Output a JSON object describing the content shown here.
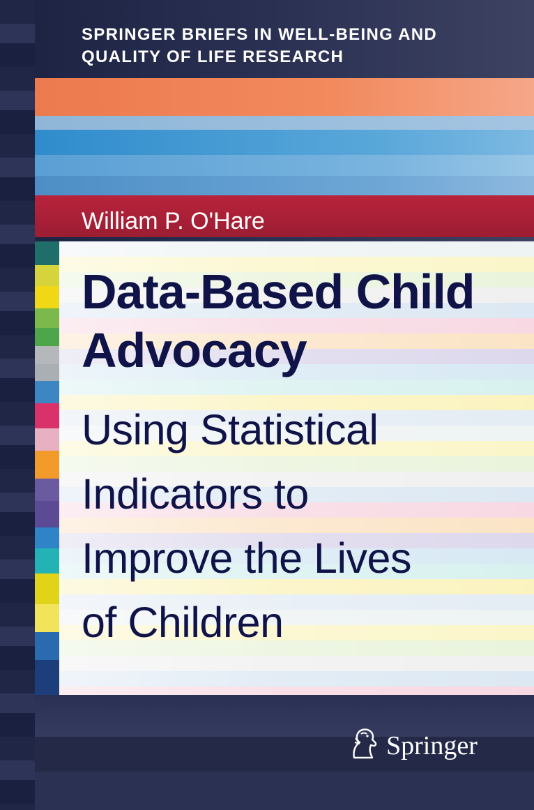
{
  "series": {
    "line1": "SPRINGER BRIEFS IN WELL-BEING AND",
    "line2": "QUALITY OF LIFE RESEARCH"
  },
  "author": "William P. O'Hare",
  "title": {
    "line1": "Data-Based Child",
    "line2": "Advocacy"
  },
  "subtitle": {
    "line1": "Using Statistical",
    "line2": "Indicators to",
    "line3": "Improve the Lives",
    "line4": "of Children"
  },
  "publisher": {
    "name": "Springer",
    "logo_icon": "springer-horse-icon"
  },
  "colors": {
    "title_text": "#0f1347",
    "accent_orange": "#ec7a4e",
    "accent_red": "#b8233a",
    "background_dark": "#232947"
  }
}
